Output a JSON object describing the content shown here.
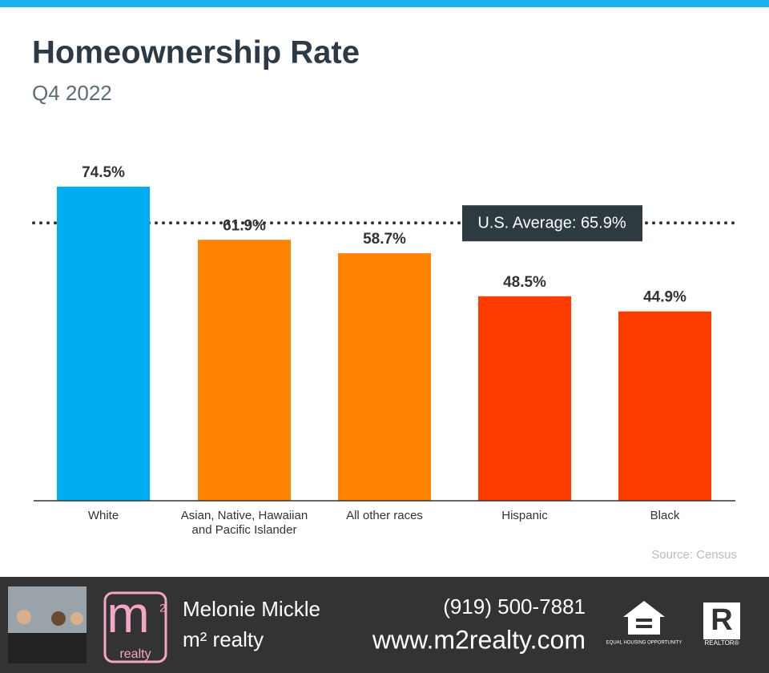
{
  "chart_data": {
    "type": "bar",
    "title": "Homeownership Rate",
    "subtitle": "Q4 2022",
    "categories": [
      "White",
      "Asian, Native, Hawaiian and Pacific Islander",
      "All other races",
      "Hispanic",
      "Black"
    ],
    "values": [
      74.5,
      61.9,
      58.7,
      48.5,
      44.9
    ],
    "value_labels": [
      "74.5%",
      "61.9%",
      "58.7%",
      "48.5%",
      "44.9%"
    ],
    "colors": [
      "#00aeef",
      "#ff8200",
      "#ff8200",
      "#ff3c00",
      "#ff3c00"
    ],
    "ylim": [
      0,
      80
    ],
    "reference": {
      "value": 65.9,
      "label": "U.S. Average: 65.9%"
    },
    "source": "Source: Census"
  },
  "footer": {
    "name": "Melonie Mickle",
    "company": "m² realty",
    "phone": "(919) 500-7881",
    "website": "www.m2realty.com",
    "logo": {
      "mark": "m",
      "superscript": "2",
      "word": "realty"
    },
    "equal_housing": "EQUAL HOUSING OPPORTUNITY",
    "realtor": "REALTOR®"
  }
}
